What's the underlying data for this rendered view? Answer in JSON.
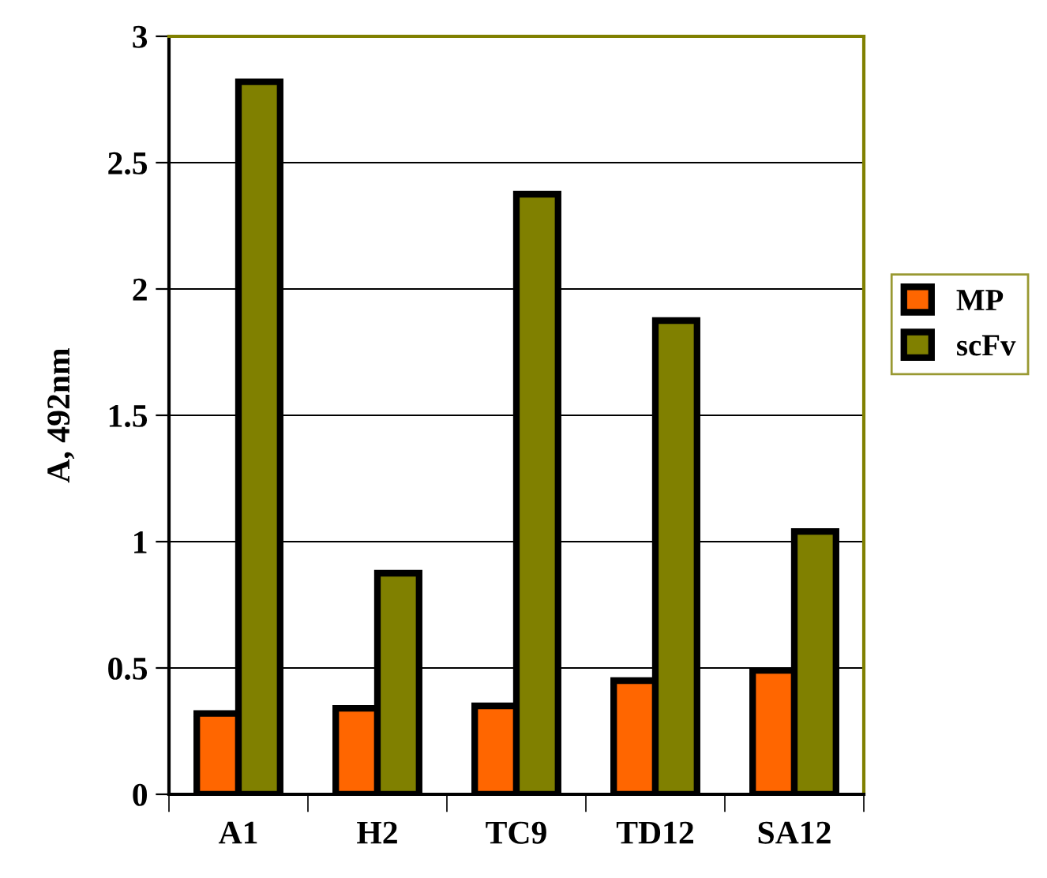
{
  "chart_data": {
    "type": "bar",
    "ylabel": "A, 492nm",
    "categories": [
      "A1",
      "H2",
      "TC9",
      "TD12",
      "SA12"
    ],
    "series": [
      {
        "name": "MP",
        "color": "#ff6600",
        "values": [
          0.32,
          0.34,
          0.35,
          0.45,
          0.49
        ]
      },
      {
        "name": "scFv",
        "color": "#808000",
        "values": [
          2.82,
          0.875,
          2.375,
          1.875,
          1.04
        ]
      }
    ],
    "ylim": [
      0,
      3
    ],
    "yticks": [
      0,
      0.5,
      1,
      1.5,
      2,
      2.5,
      3
    ],
    "grid": "y",
    "legend": "right"
  }
}
